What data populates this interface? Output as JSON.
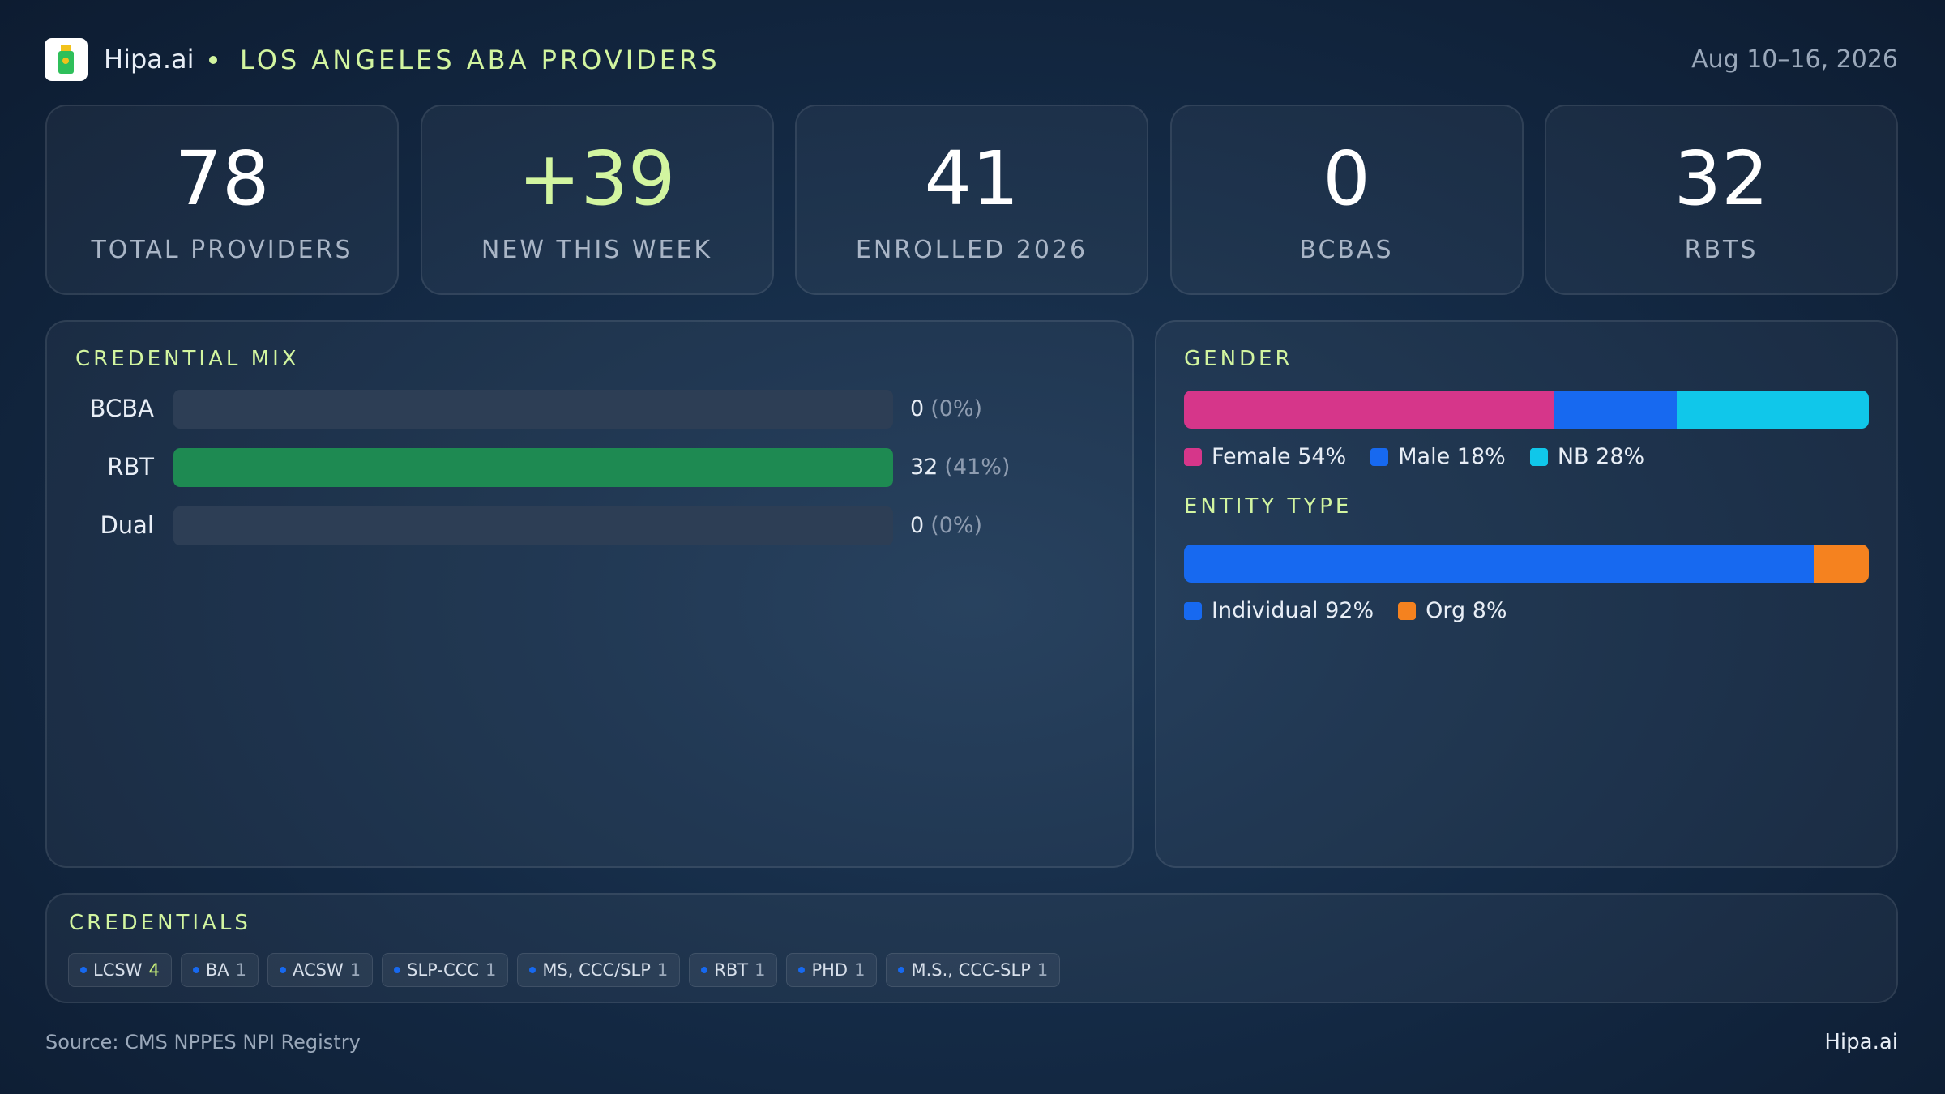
{
  "header": {
    "brand": "Hipa.ai",
    "title": "LOS ANGELES ABA PROVIDERS",
    "date": "Aug 10–16, 2026"
  },
  "kpis": [
    {
      "value": 78,
      "label": "TOTAL PROVIDERS"
    },
    {
      "value": "+39",
      "label": "NEW THIS WEEK"
    },
    {
      "value": 41,
      "label": "ENROLLED 2026"
    },
    {
      "value": 0,
      "label": "BCBAS"
    },
    {
      "value": 32,
      "label": "RBTS"
    }
  ],
  "credential_mix": {
    "title": "CREDENTIAL MIX",
    "categories": [
      "BCBA",
      "RBT",
      "Dual"
    ],
    "values": [
      0,
      32,
      0
    ],
    "percents": [
      0,
      41,
      0
    ],
    "percent_labels": [
      "(0%)",
      "(41%)",
      "(0%)"
    ],
    "color": "#1e8a52",
    "track_color": "#2d3e55"
  },
  "gender": {
    "title": "GENDER",
    "series": [
      {
        "name": "Female",
        "value": 54,
        "value_label": "54%",
        "color": "#d6368a"
      },
      {
        "name": "Male",
        "value": 18,
        "value_label": "18%",
        "color": "#1769f0"
      },
      {
        "name": "NB",
        "value": 28,
        "value_label": "28%",
        "color": "#10c7ea"
      }
    ]
  },
  "entity_type": {
    "title": "ENTITY TYPE",
    "series": [
      {
        "name": "Individual",
        "value": 92,
        "value_label": "92%",
        "color": "#1769f0"
      },
      {
        "name": "Org",
        "value": 8,
        "value_label": "8%",
        "color": "#f5821f"
      }
    ]
  },
  "credentials": {
    "title": "CREDENTIALS",
    "items": [
      {
        "name": "LCSW",
        "count": 4
      },
      {
        "name": "BA",
        "count": 1
      },
      {
        "name": "ACSW",
        "count": 1
      },
      {
        "name": "SLP-CCC",
        "count": 1
      },
      {
        "name": "MS, CCC/SLP",
        "count": 1
      },
      {
        "name": "RBT",
        "count": 1
      },
      {
        "name": "PHD",
        "count": 1
      },
      {
        "name": "M.S., CCC-SLP",
        "count": 1
      }
    ]
  },
  "footer": {
    "source": "Source: CMS NPPES NPI Registry",
    "brand": "Hipa.ai"
  }
}
